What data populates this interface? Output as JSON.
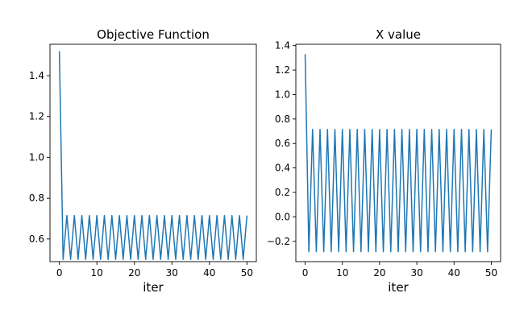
{
  "chart_data": [
    {
      "type": "line",
      "title": "Objective Function",
      "xlabel": "iter",
      "ylabel": "",
      "xlim": [
        -2.5,
        52.5
      ],
      "ylim": [
        0.489,
        1.554
      ],
      "xticks": [
        0,
        10,
        20,
        30,
        40,
        50
      ],
      "xtick_labels": [
        "0",
        "10",
        "20",
        "30",
        "40",
        "50"
      ],
      "yticks": [
        0.6,
        0.8,
        1.0,
        1.2,
        1.4
      ],
      "ytick_labels": [
        "0.6",
        "0.8",
        "1.0",
        "1.2",
        "1.4"
      ],
      "grid": false,
      "color": "#1f77b4",
      "series": [
        {
          "x": [
            0,
            1,
            2,
            3,
            4,
            5,
            6,
            7,
            8,
            9,
            10,
            11,
            12,
            13,
            14,
            15,
            16,
            17,
            18,
            19,
            20,
            21,
            22,
            23,
            24,
            25,
            26,
            27,
            28,
            29,
            30,
            31,
            32,
            33,
            34,
            35,
            36,
            37,
            38,
            39,
            40,
            41,
            42,
            43,
            44,
            45,
            46,
            47,
            48,
            49,
            50
          ],
          "values": [
            1.52,
            0.5,
            0.715,
            0.5,
            0.715,
            0.5,
            0.715,
            0.5,
            0.715,
            0.5,
            0.715,
            0.5,
            0.715,
            0.5,
            0.715,
            0.5,
            0.715,
            0.5,
            0.715,
            0.5,
            0.715,
            0.5,
            0.715,
            0.5,
            0.715,
            0.5,
            0.715,
            0.5,
            0.715,
            0.5,
            0.715,
            0.5,
            0.715,
            0.5,
            0.715,
            0.5,
            0.715,
            0.5,
            0.715,
            0.5,
            0.715,
            0.5,
            0.715,
            0.5,
            0.715,
            0.5,
            0.715,
            0.5,
            0.715,
            0.5,
            0.715
          ]
        }
      ]
    },
    {
      "type": "line",
      "title": "X value",
      "xlabel": "iter",
      "ylabel": "",
      "xlim": [
        -2.5,
        52.5
      ],
      "ylim": [
        -0.366,
        1.411
      ],
      "xticks": [
        0,
        10,
        20,
        30,
        40,
        50
      ],
      "xtick_labels": [
        "0",
        "10",
        "20",
        "30",
        "40",
        "50"
      ],
      "yticks": [
        -0.2,
        0.0,
        0.2,
        0.4,
        0.6,
        0.8,
        1.0,
        1.2,
        1.4
      ],
      "ytick_labels": [
        "−0.2",
        "0.0",
        "0.2",
        "0.4",
        "0.6",
        "0.8",
        "1.0",
        "1.2",
        "1.4"
      ],
      "grid": false,
      "color": "#1f77b4",
      "series": [
        {
          "x": [
            0,
            1,
            2,
            3,
            4,
            5,
            6,
            7,
            8,
            9,
            10,
            11,
            12,
            13,
            14,
            15,
            16,
            17,
            18,
            19,
            20,
            21,
            22,
            23,
            24,
            25,
            26,
            27,
            28,
            29,
            30,
            31,
            32,
            33,
            34,
            35,
            36,
            37,
            38,
            39,
            40,
            41,
            42,
            43,
            44,
            45,
            46,
            47,
            48,
            49,
            50
          ],
          "values": [
            1.33,
            -0.285,
            0.715,
            -0.285,
            0.715,
            -0.285,
            0.715,
            -0.285,
            0.715,
            -0.285,
            0.715,
            -0.285,
            0.715,
            -0.285,
            0.715,
            -0.285,
            0.715,
            -0.285,
            0.715,
            -0.285,
            0.715,
            -0.285,
            0.715,
            -0.285,
            0.715,
            -0.285,
            0.715,
            -0.285,
            0.715,
            -0.285,
            0.715,
            -0.285,
            0.715,
            -0.285,
            0.715,
            -0.285,
            0.715,
            -0.285,
            0.715,
            -0.285,
            0.715,
            -0.285,
            0.715,
            -0.285,
            0.715,
            -0.285,
            0.715,
            -0.285,
            0.715,
            -0.285,
            0.715
          ]
        }
      ]
    }
  ]
}
